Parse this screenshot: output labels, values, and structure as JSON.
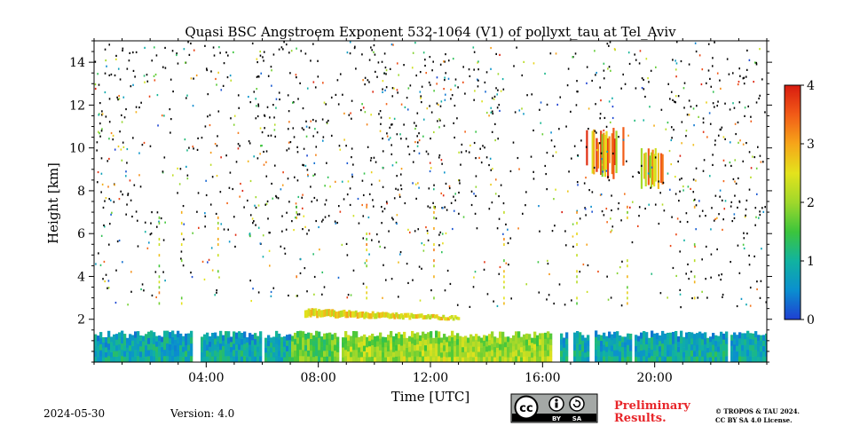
{
  "chart_data": {
    "type": "heatmap",
    "title": "Quasi BSC Angstroem Exponent 532-1064 (V1) of pollyxt_tau at Tel_Aviv",
    "xlabel": "Time [UTC]",
    "ylabel": "Height [km]",
    "xlim_hours": [
      0,
      24
    ],
    "ylim_km": [
      0,
      15
    ],
    "x_ticks": [
      {
        "hour": 4,
        "label": "04:00"
      },
      {
        "hour": 8,
        "label": "08:00"
      },
      {
        "hour": 12,
        "label": "12:00"
      },
      {
        "hour": 16,
        "label": "16:00"
      },
      {
        "hour": 20,
        "label": "20:00"
      }
    ],
    "y_ticks": [
      {
        "km": 2,
        "label": "2"
      },
      {
        "km": 4,
        "label": "4"
      },
      {
        "km": 6,
        "label": "6"
      },
      {
        "km": 8,
        "label": "8"
      },
      {
        "km": 10,
        "label": "10"
      },
      {
        "km": 12,
        "label": "12"
      },
      {
        "km": 14,
        "label": "14"
      }
    ],
    "colorbar": {
      "range": [
        0,
        4
      ],
      "ticks": [
        {
          "value": 0,
          "label": "0"
        },
        {
          "value": 1,
          "label": "1"
        },
        {
          "value": 2,
          "label": "2"
        },
        {
          "value": 3,
          "label": "3"
        },
        {
          "value": 4,
          "label": "4"
        }
      ],
      "colormap": [
        "#1f3fd2",
        "#0a8fcf",
        "#11b3a0",
        "#3cc53c",
        "#9fd82b",
        "#e4e31c",
        "#f6a519",
        "#f25b17",
        "#d81b10"
      ]
    },
    "features": {
      "boundary_layer_top_km": 1.3,
      "elevated_layer": {
        "start_hour": 7.5,
        "end_hour": 13.0,
        "height_km": 2.3,
        "value": 2.6
      },
      "high_clouds": [
        {
          "start_hour": 17.5,
          "end_hour": 18.9,
          "bottom_km": 8.5,
          "top_km": 11.0,
          "value": 2.8
        },
        {
          "start_hour": 19.5,
          "end_hour": 20.3,
          "bottom_km": 7.8,
          "top_km": 10.2,
          "value": 2.5
        }
      ]
    }
  },
  "footer": {
    "date": "2024-05-30",
    "version": "Version: 4.0",
    "preliminary_line1": "Preliminary",
    "preliminary_line2": "Results.",
    "copyright_line1": "© TROPOS & TAU 2024.",
    "copyright_line2": "CC BY SA 4.0 License.",
    "license_badge": {
      "cc": "cc",
      "by": "BY",
      "sa": "SA"
    }
  }
}
